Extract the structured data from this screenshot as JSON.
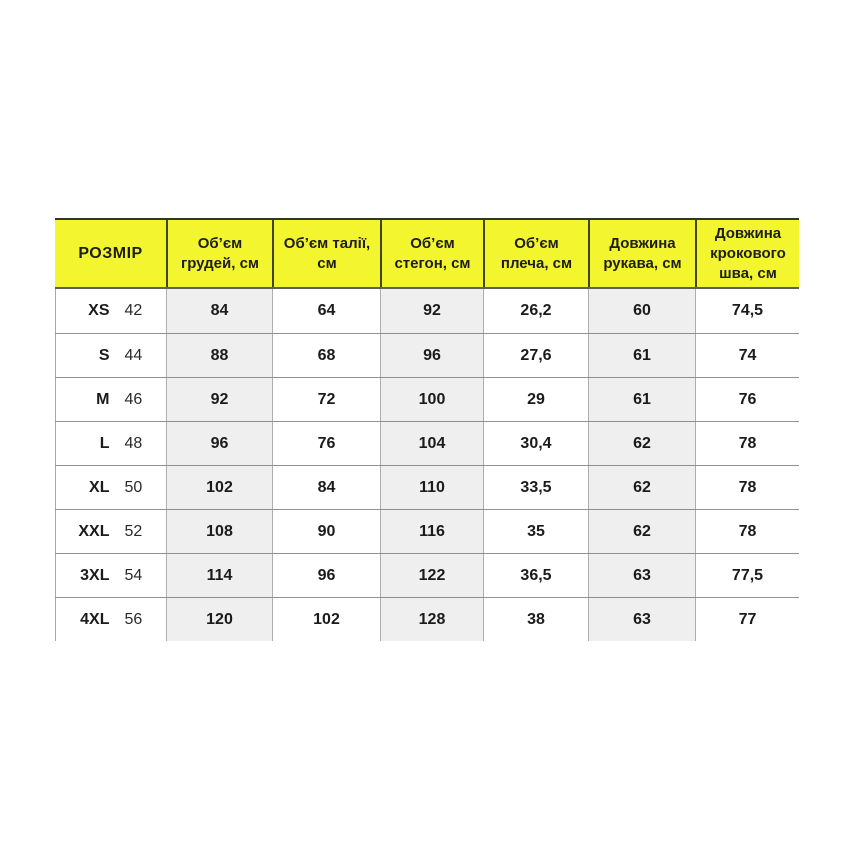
{
  "colors": {
    "header_bg": "#f3f62e",
    "header_text": "#1d1d1b",
    "stripe_bg": "#efefef",
    "row_border": "#909090",
    "column_border": "#aeaeae",
    "header_divider": "#43431f",
    "value_text": "#1b1b1b",
    "page_bg": "#ffffff"
  },
  "chart_data": {
    "type": "table",
    "title": "",
    "columns": [
      "РОЗМІР",
      "Об’єм грудей, см",
      "Об’єм талії, см",
      "Об’єм стегон, см",
      "Об’єм плеча, см",
      "Довжина рукава, см",
      "Довжина крокового шва, см"
    ],
    "size_labels": [
      "XS",
      "S",
      "M",
      "L",
      "XL",
      "XXL",
      "3XL",
      "4XL"
    ],
    "size_numbers": [
      "42",
      "44",
      "46",
      "48",
      "50",
      "52",
      "54",
      "56"
    ],
    "rows": [
      [
        "84",
        "64",
        "92",
        "26,2",
        "60",
        "74,5"
      ],
      [
        "88",
        "68",
        "96",
        "27,6",
        "61",
        "74"
      ],
      [
        "92",
        "72",
        "100",
        "29",
        "61",
        "76"
      ],
      [
        "96",
        "76",
        "104",
        "30,4",
        "62",
        "78"
      ],
      [
        "102",
        "84",
        "110",
        "33,5",
        "62",
        "78"
      ],
      [
        "108",
        "90",
        "116",
        "35",
        "62",
        "78"
      ],
      [
        "114",
        "96",
        "122",
        "36,5",
        "63",
        "77,5"
      ],
      [
        "120",
        "102",
        "128",
        "38",
        "63",
        "77"
      ]
    ]
  }
}
